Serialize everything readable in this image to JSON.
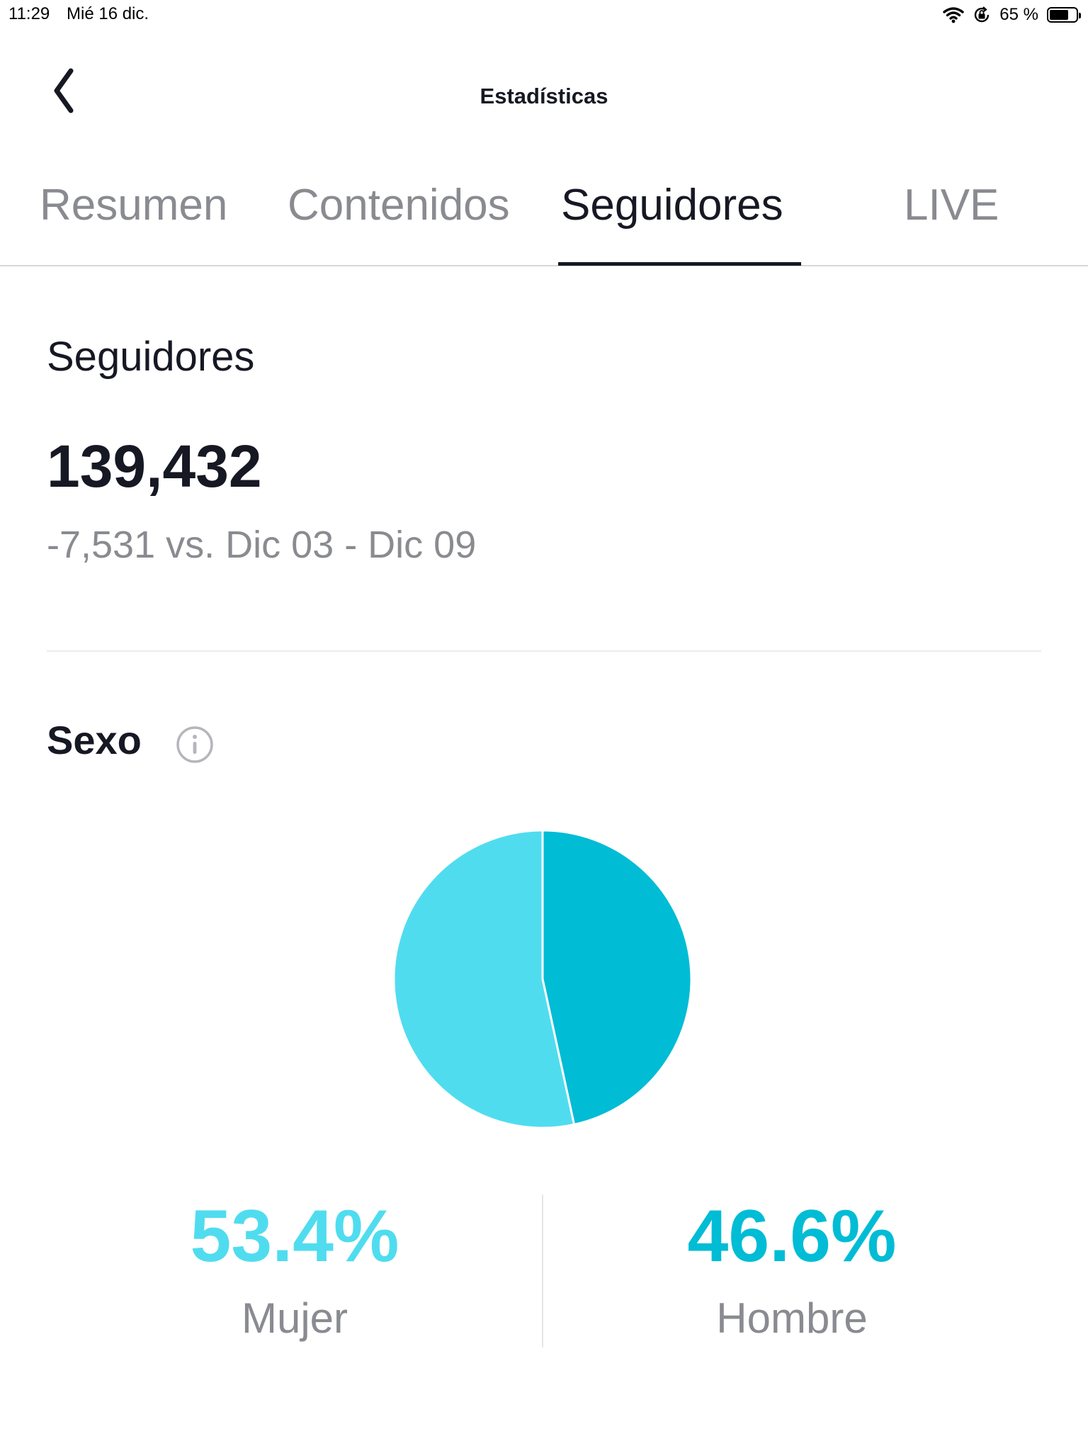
{
  "status_bar": {
    "time": "11:29",
    "date": "Mié 16 dic.",
    "battery": "65 %",
    "battery_level": 0.65,
    "icons": [
      "wifi-icon",
      "orientation-lock-icon",
      "battery-icon"
    ]
  },
  "nav": {
    "title": "Estadísticas",
    "back_icon": "chevron-left-icon"
  },
  "tabs": [
    {
      "label": "Resumen",
      "active": false
    },
    {
      "label": "Contenidos",
      "active": false
    },
    {
      "label": "Seguidores",
      "active": true
    },
    {
      "label": "LIVE",
      "active": false
    }
  ],
  "followers": {
    "title": "Seguidores",
    "count": "139,432",
    "delta": "-7,531 vs. Dic 03 - Dic 09"
  },
  "gender": {
    "title": "Sexo",
    "info_icon": "info-icon"
  },
  "colors": {
    "female": "#50dcef",
    "male": "#00bcd5",
    "text_primary": "#161823",
    "text_secondary": "#8a8b91"
  },
  "chart_data": {
    "type": "pie",
    "slices": [
      {
        "label": "Mujer",
        "value": 53.4,
        "display": "53.4%",
        "color": "#50dcef"
      },
      {
        "label": "Hombre",
        "value": 46.6,
        "display": "46.6%",
        "color": "#00bcd5"
      }
    ]
  }
}
